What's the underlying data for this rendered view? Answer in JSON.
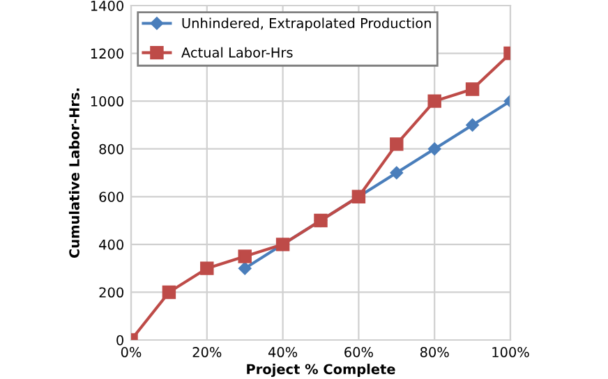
{
  "chart_data": {
    "type": "line",
    "xlabel": "Project % Complete",
    "ylabel": "Cumulative Labor-Hrs.",
    "xlim": [
      0,
      100
    ],
    "ylim": [
      0,
      1400
    ],
    "xticks": [
      {
        "value": 0,
        "label": "0%"
      },
      {
        "value": 20,
        "label": "20%"
      },
      {
        "value": 40,
        "label": "40%"
      },
      {
        "value": 60,
        "label": "60%"
      },
      {
        "value": 80,
        "label": "80%"
      },
      {
        "value": 100,
        "label": "100%"
      }
    ],
    "yticks": [
      0,
      200,
      400,
      600,
      800,
      1000,
      1200,
      1400
    ],
    "grid": true,
    "legend": "top left",
    "line_style": "solid",
    "series": [
      {
        "name": "Unhindered, Extrapolated Production",
        "color": "#4a7ebb",
        "marker": "diamond",
        "x": [
          30,
          40,
          50,
          60,
          70,
          80,
          90,
          100
        ],
        "values": [
          300,
          400,
          500,
          600,
          700,
          800,
          900,
          1000
        ]
      },
      {
        "name": "Actual Labor-Hrs",
        "color": "#be4b48",
        "marker": "square",
        "x": [
          0,
          10,
          20,
          30,
          40,
          50,
          60,
          70,
          80,
          90,
          100
        ],
        "values": [
          0,
          200,
          300,
          350,
          400,
          500,
          600,
          820,
          1000,
          1050,
          1200
        ]
      }
    ]
  }
}
